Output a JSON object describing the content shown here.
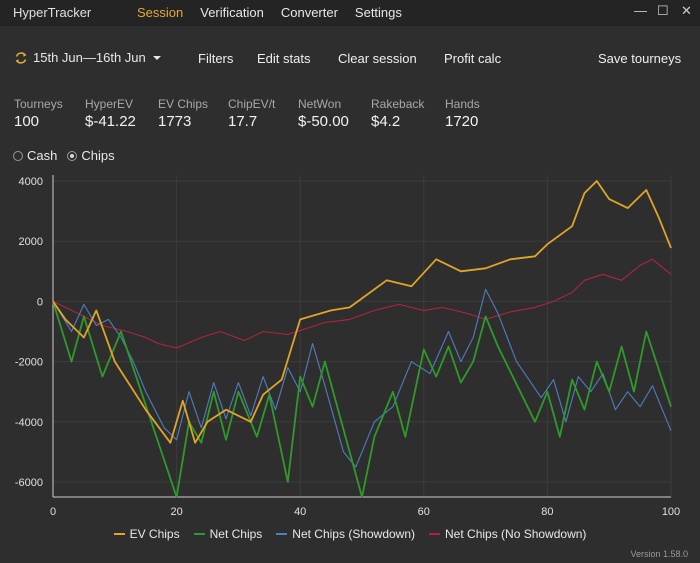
{
  "app": {
    "title": "HyperTracker",
    "version": "Version 1.58.0"
  },
  "menu": [
    {
      "label": "Session",
      "active": true
    },
    {
      "label": "Verification",
      "active": false
    },
    {
      "label": "Converter",
      "active": false
    },
    {
      "label": "Settings",
      "active": false
    }
  ],
  "window": {
    "minimize": "—",
    "maximize": "☐",
    "close": "✕"
  },
  "toolbar": {
    "date_range": "15th Jun—16th Jun",
    "filters": "Filters",
    "edit_stats": "Edit stats",
    "clear_session": "Clear session",
    "profit_calc": "Profit calc",
    "save_tourneys": "Save tourneys"
  },
  "stats": [
    {
      "label": "Tourneys",
      "value": "100"
    },
    {
      "label": "HyperEV",
      "value": "$-41.22"
    },
    {
      "label": "EV Chips",
      "value": "1773"
    },
    {
      "label": "ChipEV/t",
      "value": "17.7"
    },
    {
      "label": "NetWon",
      "value": "$-50.00"
    },
    {
      "label": "Rakeback",
      "value": "$4.2"
    },
    {
      "label": "Hands",
      "value": "1720"
    }
  ],
  "mode": {
    "options": [
      "Cash",
      "Chips"
    ],
    "selected": "Chips"
  },
  "colors": {
    "accent": "#e3a83a",
    "ev_chips": "#e0a527",
    "net_chips": "#2f9a2a",
    "net_showdown": "#4f7dbf",
    "net_no_showdown": "#b0243f",
    "grid": "#3c3c3c",
    "axis": "#e0e0e0"
  },
  "chart_data": {
    "type": "line",
    "xlim": [
      0,
      100
    ],
    "ylim": [
      -6500,
      4200
    ],
    "x_ticks": [
      0,
      20,
      40,
      60,
      80,
      100
    ],
    "y_ticks": [
      4000,
      2000,
      0,
      -2000,
      -4000,
      -6000
    ],
    "grid": true,
    "legend_position": "bottom",
    "series": [
      {
        "name": "EV Chips",
        "points": [
          [
            0,
            0
          ],
          [
            2,
            -600
          ],
          [
            5,
            -1200
          ],
          [
            7,
            -300
          ],
          [
            10,
            -2000
          ],
          [
            15,
            -3600
          ],
          [
            19,
            -4700
          ],
          [
            21,
            -3300
          ],
          [
            23,
            -4700
          ],
          [
            25,
            -4000
          ],
          [
            28,
            -3600
          ],
          [
            32,
            -4000
          ],
          [
            34,
            -3100
          ],
          [
            37,
            -2600
          ],
          [
            40,
            -600
          ],
          [
            45,
            -300
          ],
          [
            48,
            -200
          ],
          [
            50,
            100
          ],
          [
            54,
            700
          ],
          [
            58,
            500
          ],
          [
            62,
            1400
          ],
          [
            66,
            1000
          ],
          [
            70,
            1100
          ],
          [
            74,
            1400
          ],
          [
            78,
            1500
          ],
          [
            80,
            1900
          ],
          [
            84,
            2500
          ],
          [
            86,
            3600
          ],
          [
            88,
            4000
          ],
          [
            90,
            3400
          ],
          [
            93,
            3100
          ],
          [
            96,
            3700
          ],
          [
            98,
            2800
          ],
          [
            100,
            1773
          ]
        ]
      },
      {
        "name": "Net Chips",
        "points": [
          [
            0,
            0
          ],
          [
            3,
            -2000
          ],
          [
            5,
            -500
          ],
          [
            8,
            -2500
          ],
          [
            11,
            -1000
          ],
          [
            20,
            -6500
          ],
          [
            22,
            -4000
          ],
          [
            24,
            -4700
          ],
          [
            26,
            -3000
          ],
          [
            28,
            -4600
          ],
          [
            30,
            -3000
          ],
          [
            33,
            -4500
          ],
          [
            35,
            -3100
          ],
          [
            38,
            -6000
          ],
          [
            40,
            -2500
          ],
          [
            42,
            -3500
          ],
          [
            44,
            -2000
          ],
          [
            50,
            -6500
          ],
          [
            52,
            -4500
          ],
          [
            55,
            -3000
          ],
          [
            57,
            -4500
          ],
          [
            60,
            -1600
          ],
          [
            62,
            -2500
          ],
          [
            64,
            -1500
          ],
          [
            66,
            -2700
          ],
          [
            68,
            -2000
          ],
          [
            70,
            -500
          ],
          [
            72,
            -1500
          ],
          [
            78,
            -4000
          ],
          [
            80,
            -3000
          ],
          [
            82,
            -4500
          ],
          [
            84,
            -2600
          ],
          [
            86,
            -3600
          ],
          [
            88,
            -2000
          ],
          [
            90,
            -3000
          ],
          [
            92,
            -1500
          ],
          [
            94,
            -3000
          ],
          [
            96,
            -1000
          ],
          [
            100,
            -3500
          ]
        ]
      },
      {
        "name": "Net Chips (Showdown)",
        "points": [
          [
            0,
            0
          ],
          [
            3,
            -1000
          ],
          [
            5,
            -100
          ],
          [
            7,
            -800
          ],
          [
            9,
            -600
          ],
          [
            11,
            -1200
          ],
          [
            13,
            -2000
          ],
          [
            15,
            -3000
          ],
          [
            18,
            -4200
          ],
          [
            20,
            -4600
          ],
          [
            22,
            -3000
          ],
          [
            24,
            -4200
          ],
          [
            26,
            -2700
          ],
          [
            28,
            -3900
          ],
          [
            30,
            -2700
          ],
          [
            32,
            -3800
          ],
          [
            34,
            -2500
          ],
          [
            36,
            -3600
          ],
          [
            38,
            -2200
          ],
          [
            40,
            -3000
          ],
          [
            42,
            -1400
          ],
          [
            44,
            -2800
          ],
          [
            47,
            -5000
          ],
          [
            49,
            -5500
          ],
          [
            52,
            -4000
          ],
          [
            55,
            -3500
          ],
          [
            58,
            -2000
          ],
          [
            61,
            -2400
          ],
          [
            64,
            -1000
          ],
          [
            66,
            -2000
          ],
          [
            68,
            -1200
          ],
          [
            70,
            400
          ],
          [
            72,
            -400
          ],
          [
            75,
            -2000
          ],
          [
            77,
            -2600
          ],
          [
            79,
            -3200
          ],
          [
            81,
            -2600
          ],
          [
            83,
            -4000
          ],
          [
            85,
            -2500
          ],
          [
            87,
            -3000
          ],
          [
            89,
            -2400
          ],
          [
            91,
            -3600
          ],
          [
            93,
            -3000
          ],
          [
            95,
            -3500
          ],
          [
            97,
            -2800
          ],
          [
            100,
            -4300
          ]
        ]
      },
      {
        "name": "Net Chips (No Showdown)",
        "points": [
          [
            0,
            0
          ],
          [
            4,
            -400
          ],
          [
            8,
            -800
          ],
          [
            12,
            -1000
          ],
          [
            15,
            -1200
          ],
          [
            17,
            -1400
          ],
          [
            20,
            -1550
          ],
          [
            24,
            -1200
          ],
          [
            27,
            -1000
          ],
          [
            31,
            -1300
          ],
          [
            34,
            -1000
          ],
          [
            38,
            -1100
          ],
          [
            41,
            -900
          ],
          [
            44,
            -700
          ],
          [
            48,
            -600
          ],
          [
            52,
            -300
          ],
          [
            56,
            -100
          ],
          [
            60,
            -300
          ],
          [
            63,
            -200
          ],
          [
            67,
            -400
          ],
          [
            70,
            -600
          ],
          [
            74,
            -350
          ],
          [
            78,
            -200
          ],
          [
            81,
            0
          ],
          [
            84,
            300
          ],
          [
            86,
            700
          ],
          [
            89,
            900
          ],
          [
            92,
            700
          ],
          [
            95,
            1200
          ],
          [
            97,
            1400
          ],
          [
            100,
            900
          ]
        ]
      }
    ]
  }
}
